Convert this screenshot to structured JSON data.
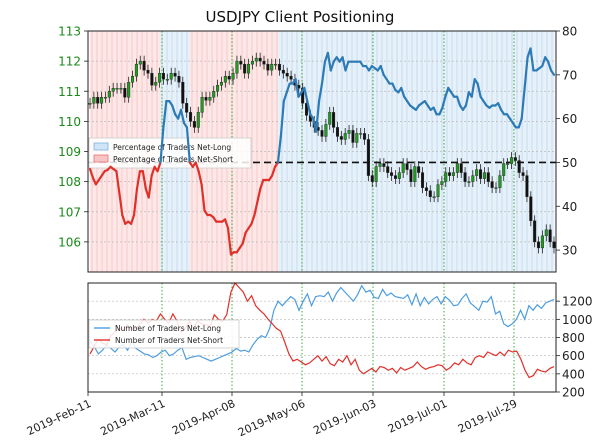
{
  "chart_data": {
    "type": "line",
    "title": "USDJPY Client Positioning",
    "x_tick_labels": [
      "2019-Feb-11",
      "2019-Mar-11",
      "2019-Apr-08",
      "2019-May-06",
      "2019-Jun-03",
      "2019-Jul-01",
      "2019-Jul-29"
    ],
    "upper_panel": {
      "left_axis": {
        "ylim": [
          105,
          113
        ],
        "ticks": [
          106,
          107,
          108,
          109,
          110,
          111,
          112,
          113
        ],
        "tick_color": "#1a8a1a"
      },
      "right_axis": {
        "ylim": [
          25,
          80
        ],
        "ticks": [
          30,
          40,
          50,
          60,
          70,
          80
        ]
      },
      "reference_line": 50,
      "legend": {
        "placement": "middle-left",
        "entries": [
          "Percentage of Traders Net-Long",
          "Percentage of Traders Net-Short"
        ]
      },
      "series": [
        {
          "name": "Percentage of Traders Net-Long",
          "color": "#2c7bb6",
          "y": [
            48.5,
            46.5,
            45,
            46,
            47,
            48,
            48.3,
            49,
            48.5,
            48,
            43,
            38,
            36,
            36.5,
            36,
            38,
            44,
            48,
            48,
            44,
            42,
            47,
            49,
            48,
            50,
            58,
            64,
            64,
            63,
            61,
            60,
            62,
            59,
            58,
            50,
            49,
            50,
            48,
            45,
            39,
            38,
            38,
            37.5,
            36.5,
            36.5,
            36.5,
            37,
            35,
            29,
            29.5,
            29.5,
            30.5,
            31.5,
            34,
            35,
            36,
            38,
            41,
            44,
            46,
            46,
            46,
            47,
            49,
            50,
            56,
            64,
            66,
            68,
            68,
            69,
            65,
            66,
            67,
            64,
            61,
            60,
            57,
            64,
            68,
            73,
            75,
            71,
            73,
            74,
            73,
            74,
            71,
            73,
            73,
            73,
            73,
            73,
            72,
            72,
            71,
            72,
            71.5,
            71,
            72,
            70,
            69,
            68,
            68,
            66.5,
            66,
            67,
            65,
            64,
            63,
            62.5,
            62,
            63,
            63.5,
            64,
            63,
            62,
            62.5,
            61,
            61,
            62.5,
            65,
            67,
            66,
            65,
            65,
            63,
            62,
            63,
            66,
            65,
            69,
            68,
            65,
            64,
            63,
            62.5,
            63,
            63,
            63.5,
            62,
            61,
            61,
            60,
            59,
            58,
            58,
            60,
            67,
            74,
            76,
            71,
            71,
            71.5,
            72,
            74,
            73,
            71,
            70
          ]
        },
        {
          "name": "USDJPY",
          "color": "#111111",
          "axis": "left",
          "y": [
            110.6,
            110.8,
            110.6,
            110.8,
            110.8,
            111.0,
            111.1,
            111.1,
            111.1,
            110.8,
            111.3,
            111.5,
            111.9,
            112.0,
            111.7,
            111.6,
            111.2,
            111.3,
            111.6,
            111.4,
            111.4,
            111.6,
            111.5,
            111.3,
            110.6,
            110.3,
            110.0,
            109.8,
            110.3,
            110.8,
            110.7,
            110.8,
            111.0,
            111.2,
            111.3,
            111.5,
            111.4,
            111.6,
            112.0,
            111.9,
            111.6,
            111.9,
            112.0,
            112.1,
            112.0,
            111.9,
            111.7,
            111.9,
            111.9,
            111.7,
            111.6,
            111.5,
            111.4,
            111.2,
            111.1,
            110.6,
            110.2,
            110.0,
            109.8,
            109.7,
            109.5,
            109.9,
            110.3,
            109.8,
            109.5,
            109.4,
            109.6,
            109.7,
            109.3,
            109.6,
            109.6,
            109.4,
            108.2,
            108.0,
            108.5,
            108.6,
            108.5,
            108.3,
            108.2,
            108.1,
            108.3,
            108.6,
            108.4,
            108.0,
            108.5,
            108.3,
            107.8,
            107.7,
            107.5,
            107.5,
            107.9,
            108.0,
            108.3,
            108.2,
            108.3,
            108.6,
            108.3,
            108.0,
            108.0,
            108.2,
            108.4,
            108.1,
            108.3,
            108.0,
            107.8,
            107.8,
            108.2,
            108.6,
            108.6,
            108.8,
            108.7,
            108.3,
            108.2,
            107.5,
            106.7,
            106.0,
            105.8,
            106.2,
            106.4,
            106.0,
            105.8
          ]
        }
      ]
    },
    "lower_panel": {
      "right_axis": {
        "ylim": [
          200,
          1400
        ],
        "ticks": [
          200,
          400,
          600,
          800,
          1000,
          1200
        ]
      },
      "legend": {
        "placement": "middle-left",
        "entries": [
          "Number of Traders Net-Long",
          "Number of Traders Net-Short"
        ]
      },
      "series": [
        {
          "name": "Number of Traders Net-Long",
          "color": "#4d9de0",
          "y": [
            760,
            700,
            620,
            660,
            720,
            680,
            640,
            700,
            720,
            660,
            760,
            680,
            650,
            620,
            610,
            580,
            600,
            640,
            660,
            600,
            620,
            660,
            690,
            560,
            580,
            590,
            600,
            580,
            560,
            540,
            560,
            580,
            600,
            620,
            640,
            680,
            650,
            660,
            640,
            720,
            780,
            820,
            800,
            900,
            1100,
            1200,
            1150,
            1200,
            1250,
            1220,
            1100,
            1200,
            1280,
            1150,
            1250,
            1260,
            1250,
            1300,
            1200,
            1290,
            1350,
            1300,
            1250,
            1200,
            1270,
            1370,
            1300,
            1320,
            1240,
            1230,
            1330,
            1260,
            1290,
            1250,
            1240,
            1230,
            1270,
            1160,
            1280,
            1150,
            1240,
            1170,
            1220,
            1250,
            1170,
            1250,
            1210,
            1150,
            1160,
            1230,
            1280,
            1180,
            1140,
            1100,
            1200,
            1190,
            1250,
            1060,
            1090,
            950,
            920,
            950,
            1000,
            1100,
            1000,
            1150,
            1100,
            1160,
            1120,
            1180,
            1200,
            1220
          ]
        },
        {
          "name": "Number of Traders Net-Short",
          "color": "#e0302a",
          "y": [
            620,
            700,
            780,
            740,
            720,
            820,
            860,
            900,
            880,
            940,
            890,
            900,
            940,
            1000,
            960,
            1000,
            980,
            1060,
            1000,
            960,
            1060,
            980,
            860,
            900,
            980,
            900,
            980,
            950,
            940,
            920,
            1050,
            1000,
            980,
            1050,
            1300,
            1400,
            1350,
            1300,
            1200,
            1260,
            1150,
            1100,
            1060,
            1000,
            950,
            900,
            870,
            750,
            620,
            540,
            560,
            530,
            500,
            520,
            560,
            600,
            540,
            590,
            510,
            490,
            560,
            530,
            600,
            500,
            560,
            440,
            400,
            430,
            460,
            420,
            480,
            470,
            440,
            460,
            410,
            470,
            440,
            460,
            480,
            530,
            480,
            450,
            470,
            480,
            500,
            490,
            440,
            470,
            520,
            500,
            560,
            520,
            500,
            580,
            600,
            580,
            640,
            620,
            600,
            640,
            600,
            660,
            640,
            650,
            560,
            440,
            360,
            380,
            450,
            430,
            420,
            460,
            480
          ]
        }
      ]
    }
  }
}
